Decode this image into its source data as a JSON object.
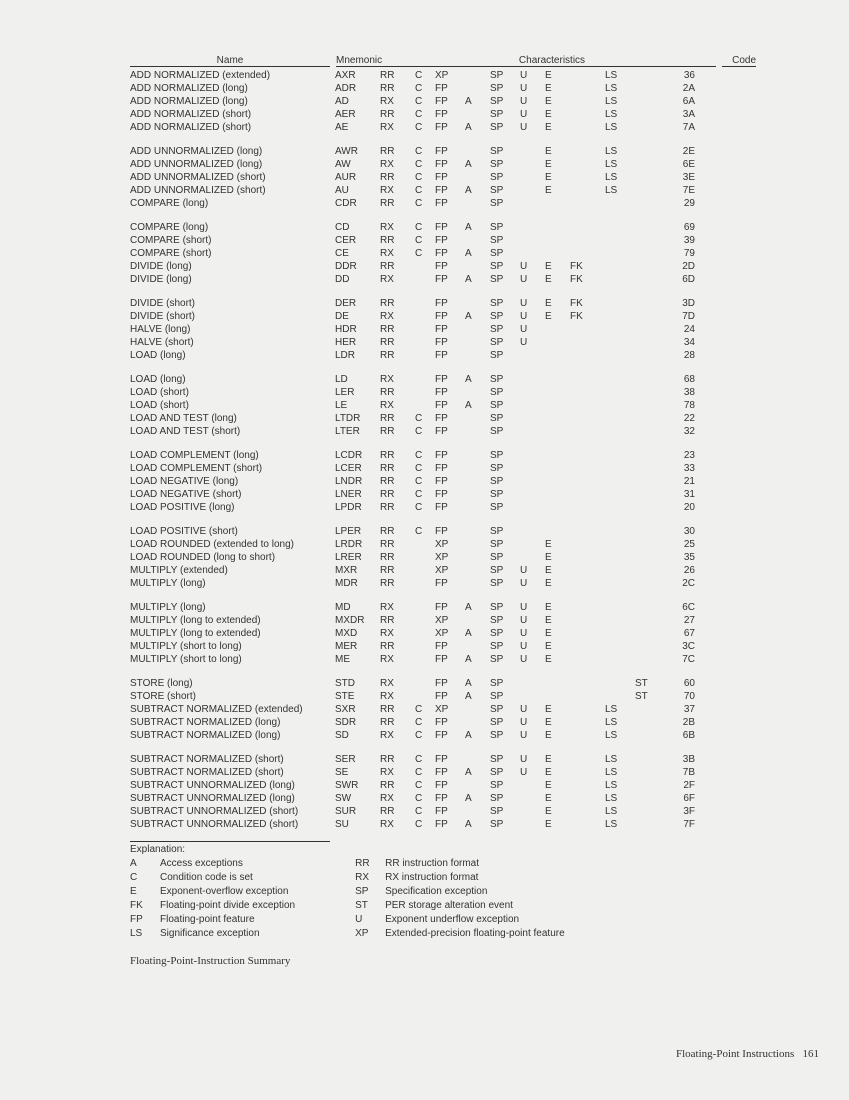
{
  "headers": {
    "name": "Name",
    "mnemonic": "Mnemonic",
    "characteristics": "Characteristics",
    "code": "Code"
  },
  "groups": [
    [
      {
        "name": "ADD NORMALIZED (extended)",
        "mnem": "AXR",
        "c": [
          "RR",
          "C",
          "XP",
          "",
          "SP",
          "U",
          "E",
          "",
          "LS",
          ""
        ],
        "code": "36"
      },
      {
        "name": "ADD NORMALIZED (long)",
        "mnem": "ADR",
        "c": [
          "RR",
          "C",
          "FP",
          "",
          "SP",
          "U",
          "E",
          "",
          "LS",
          ""
        ],
        "code": "2A"
      },
      {
        "name": "ADD NORMALIZED (long)",
        "mnem": "AD",
        "c": [
          "RX",
          "C",
          "FP",
          "A",
          "SP",
          "U",
          "E",
          "",
          "LS",
          ""
        ],
        "code": "6A"
      },
      {
        "name": "ADD NORMALIZED (short)",
        "mnem": "AER",
        "c": [
          "RR",
          "C",
          "FP",
          "",
          "SP",
          "U",
          "E",
          "",
          "LS",
          ""
        ],
        "code": "3A"
      },
      {
        "name": "ADD NORMALIZED (short)",
        "mnem": "AE",
        "c": [
          "RX",
          "C",
          "FP",
          "A",
          "SP",
          "U",
          "E",
          "",
          "LS",
          ""
        ],
        "code": "7A"
      }
    ],
    [
      {
        "name": "ADD UNNORMALIZED (long)",
        "mnem": "AWR",
        "c": [
          "RR",
          "C",
          "FP",
          "",
          "SP",
          "",
          "E",
          "",
          "LS",
          ""
        ],
        "code": "2E"
      },
      {
        "name": "ADD UNNORMALIZED (long)",
        "mnem": "AW",
        "c": [
          "RX",
          "C",
          "FP",
          "A",
          "SP",
          "",
          "E",
          "",
          "LS",
          ""
        ],
        "code": "6E"
      },
      {
        "name": "ADD UNNORMALIZED (short)",
        "mnem": "AUR",
        "c": [
          "RR",
          "C",
          "FP",
          "",
          "SP",
          "",
          "E",
          "",
          "LS",
          ""
        ],
        "code": "3E"
      },
      {
        "name": "ADD UNNORMALIZED (short)",
        "mnem": "AU",
        "c": [
          "RX",
          "C",
          "FP",
          "A",
          "SP",
          "",
          "E",
          "",
          "LS",
          ""
        ],
        "code": "7E"
      },
      {
        "name": "COMPARE (long)",
        "mnem": "CDR",
        "c": [
          "RR",
          "C",
          "FP",
          "",
          "SP",
          "",
          "",
          "",
          "",
          ""
        ],
        "code": "29"
      }
    ],
    [
      {
        "name": "COMPARE (long)",
        "mnem": "CD",
        "c": [
          "RX",
          "C",
          "FP",
          "A",
          "SP",
          "",
          "",
          "",
          "",
          ""
        ],
        "code": "69"
      },
      {
        "name": "COMPARE (short)",
        "mnem": "CER",
        "c": [
          "RR",
          "C",
          "FP",
          "",
          "SP",
          "",
          "",
          "",
          "",
          ""
        ],
        "code": "39"
      },
      {
        "name": "COMPARE (short)",
        "mnem": "CE",
        "c": [
          "RX",
          "C",
          "FP",
          "A",
          "SP",
          "",
          "",
          "",
          "",
          ""
        ],
        "code": "79"
      },
      {
        "name": "DIVIDE (long)",
        "mnem": "DDR",
        "c": [
          "RR",
          "",
          "FP",
          "",
          "SP",
          "U",
          "E",
          "FK",
          "",
          ""
        ],
        "code": "2D"
      },
      {
        "name": "DIVIDE (long)",
        "mnem": "DD",
        "c": [
          "RX",
          "",
          "FP",
          "A",
          "SP",
          "U",
          "E",
          "FK",
          "",
          ""
        ],
        "code": "6D"
      }
    ],
    [
      {
        "name": "DIVIDE (short)",
        "mnem": "DER",
        "c": [
          "RR",
          "",
          "FP",
          "",
          "SP",
          "U",
          "E",
          "FK",
          "",
          ""
        ],
        "code": "3D"
      },
      {
        "name": "DIVIDE (short)",
        "mnem": "DE",
        "c": [
          "RX",
          "",
          "FP",
          "A",
          "SP",
          "U",
          "E",
          "FK",
          "",
          ""
        ],
        "code": "7D"
      },
      {
        "name": "HALVE (long)",
        "mnem": "HDR",
        "c": [
          "RR",
          "",
          "FP",
          "",
          "SP",
          "U",
          "",
          "",
          "",
          ""
        ],
        "code": "24"
      },
      {
        "name": "HALVE (short)",
        "mnem": "HER",
        "c": [
          "RR",
          "",
          "FP",
          "",
          "SP",
          "U",
          "",
          "",
          "",
          ""
        ],
        "code": "34"
      },
      {
        "name": "LOAD (long)",
        "mnem": "LDR",
        "c": [
          "RR",
          "",
          "FP",
          "",
          "SP",
          "",
          "",
          "",
          "",
          ""
        ],
        "code": "28"
      }
    ],
    [
      {
        "name": "LOAD (long)",
        "mnem": "LD",
        "c": [
          "RX",
          "",
          "FP",
          "A",
          "SP",
          "",
          "",
          "",
          "",
          ""
        ],
        "code": "68"
      },
      {
        "name": "LOAD (short)",
        "mnem": "LER",
        "c": [
          "RR",
          "",
          "FP",
          "",
          "SP",
          "",
          "",
          "",
          "",
          ""
        ],
        "code": "38"
      },
      {
        "name": "LOAD (short)",
        "mnem": "LE",
        "c": [
          "RX",
          "",
          "FP",
          "A",
          "SP",
          "",
          "",
          "",
          "",
          ""
        ],
        "code": "78"
      },
      {
        "name": "LOAD AND TEST (long)",
        "mnem": "LTDR",
        "c": [
          "RR",
          "C",
          "FP",
          "",
          "SP",
          "",
          "",
          "",
          "",
          ""
        ],
        "code": "22"
      },
      {
        "name": "LOAD AND TEST (short)",
        "mnem": "LTER",
        "c": [
          "RR",
          "C",
          "FP",
          "",
          "SP",
          "",
          "",
          "",
          "",
          ""
        ],
        "code": "32"
      }
    ],
    [
      {
        "name": "LOAD COMPLEMENT (long)",
        "mnem": "LCDR",
        "c": [
          "RR",
          "C",
          "FP",
          "",
          "SP",
          "",
          "",
          "",
          "",
          ""
        ],
        "code": "23"
      },
      {
        "name": "LOAD COMPLEMENT (short)",
        "mnem": "LCER",
        "c": [
          "RR",
          "C",
          "FP",
          "",
          "SP",
          "",
          "",
          "",
          "",
          ""
        ],
        "code": "33"
      },
      {
        "name": "LOAD NEGATIVE (long)",
        "mnem": "LNDR",
        "c": [
          "RR",
          "C",
          "FP",
          "",
          "SP",
          "",
          "",
          "",
          "",
          ""
        ],
        "code": "21"
      },
      {
        "name": "LOAD NEGATIVE (short)",
        "mnem": "LNER",
        "c": [
          "RR",
          "C",
          "FP",
          "",
          "SP",
          "",
          "",
          "",
          "",
          ""
        ],
        "code": "31"
      },
      {
        "name": "LOAD POSITIVE (long)",
        "mnem": "LPDR",
        "c": [
          "RR",
          "C",
          "FP",
          "",
          "SP",
          "",
          "",
          "",
          "",
          ""
        ],
        "code": "20"
      }
    ],
    [
      {
        "name": "LOAD POSITIVE (short)",
        "mnem": "LPER",
        "c": [
          "RR",
          "C",
          "FP",
          "",
          "SP",
          "",
          "",
          "",
          "",
          ""
        ],
        "code": "30"
      },
      {
        "name": "LOAD ROUNDED (extended to long)",
        "mnem": "LRDR",
        "c": [
          "RR",
          "",
          "XP",
          "",
          "SP",
          "",
          "E",
          "",
          "",
          ""
        ],
        "code": "25"
      },
      {
        "name": "LOAD ROUNDED (long to short)",
        "mnem": "LRER",
        "c": [
          "RR",
          "",
          "XP",
          "",
          "SP",
          "",
          "E",
          "",
          "",
          ""
        ],
        "code": "35"
      },
      {
        "name": "MULTIPLY (extended)",
        "mnem": "MXR",
        "c": [
          "RR",
          "",
          "XP",
          "",
          "SP",
          "U",
          "E",
          "",
          "",
          ""
        ],
        "code": "26"
      },
      {
        "name": "MULTIPLY (long)",
        "mnem": "MDR",
        "c": [
          "RR",
          "",
          "FP",
          "",
          "SP",
          "U",
          "E",
          "",
          "",
          ""
        ],
        "code": "2C"
      }
    ],
    [
      {
        "name": "MULTIPLY (long)",
        "mnem": "MD",
        "c": [
          "RX",
          "",
          "FP",
          "A",
          "SP",
          "U",
          "E",
          "",
          "",
          ""
        ],
        "code": "6C"
      },
      {
        "name": "MULTIPLY (long to extended)",
        "mnem": "MXDR",
        "c": [
          "RR",
          "",
          "XP",
          "",
          "SP",
          "U",
          "E",
          "",
          "",
          ""
        ],
        "code": "27"
      },
      {
        "name": "MULTIPLY (long to extended)",
        "mnem": "MXD",
        "c": [
          "RX",
          "",
          "XP",
          "A",
          "SP",
          "U",
          "E",
          "",
          "",
          ""
        ],
        "code": "67"
      },
      {
        "name": "MULTIPLY (short to long)",
        "mnem": "MER",
        "c": [
          "RR",
          "",
          "FP",
          "",
          "SP",
          "U",
          "E",
          "",
          "",
          ""
        ],
        "code": "3C"
      },
      {
        "name": "MULTIPLY (short to long)",
        "mnem": "ME",
        "c": [
          "RX",
          "",
          "FP",
          "A",
          "SP",
          "U",
          "E",
          "",
          "",
          ""
        ],
        "code": "7C"
      }
    ],
    [
      {
        "name": "STORE (long)",
        "mnem": "STD",
        "c": [
          "RX",
          "",
          "FP",
          "A",
          "SP",
          "",
          "",
          "",
          "",
          "ST"
        ],
        "code": "60"
      },
      {
        "name": "STORE (short)",
        "mnem": "STE",
        "c": [
          "RX",
          "",
          "FP",
          "A",
          "SP",
          "",
          "",
          "",
          "",
          "ST"
        ],
        "code": "70"
      },
      {
        "name": "SUBTRACT NORMALIZED (extended)",
        "mnem": "SXR",
        "c": [
          "RR",
          "C",
          "XP",
          "",
          "SP",
          "U",
          "E",
          "",
          "LS",
          ""
        ],
        "code": "37"
      },
      {
        "name": "SUBTRACT NORMALIZED (long)",
        "mnem": "SDR",
        "c": [
          "RR",
          "C",
          "FP",
          "",
          "SP",
          "U",
          "E",
          "",
          "LS",
          ""
        ],
        "code": "2B"
      },
      {
        "name": "SUBTRACT NORMALIZED (long)",
        "mnem": "SD",
        "c": [
          "RX",
          "C",
          "FP",
          "A",
          "SP",
          "U",
          "E",
          "",
          "LS",
          ""
        ],
        "code": "6B"
      }
    ],
    [
      {
        "name": "SUBTRACT NORMALIZED (short)",
        "mnem": "SER",
        "c": [
          "RR",
          "C",
          "FP",
          "",
          "SP",
          "U",
          "E",
          "",
          "LS",
          ""
        ],
        "code": "3B"
      },
      {
        "name": "SUBTRACT NORMALIZED (short)",
        "mnem": "SE",
        "c": [
          "RX",
          "C",
          "FP",
          "A",
          "SP",
          "U",
          "E",
          "",
          "LS",
          ""
        ],
        "code": "7B"
      },
      {
        "name": "SUBTRACT UNNORMALIZED (long)",
        "mnem": "SWR",
        "c": [
          "RR",
          "C",
          "FP",
          "",
          "SP",
          "",
          "E",
          "",
          "LS",
          ""
        ],
        "code": "2F"
      },
      {
        "name": "SUBTRACT UNNORMALIZED (long)",
        "mnem": "SW",
        "c": [
          "RX",
          "C",
          "FP",
          "A",
          "SP",
          "",
          "E",
          "",
          "LS",
          ""
        ],
        "code": "6F"
      },
      {
        "name": "SUBTRACT UNNORMALIZED (short)",
        "mnem": "SUR",
        "c": [
          "RR",
          "C",
          "FP",
          "",
          "SP",
          "",
          "E",
          "",
          "LS",
          ""
        ],
        "code": "3F"
      },
      {
        "name": "SUBTRACT UNNORMALIZED (short)",
        "mnem": "SU",
        "c": [
          "RX",
          "C",
          "FP",
          "A",
          "SP",
          "",
          "E",
          "",
          "LS",
          ""
        ],
        "code": "7F"
      }
    ]
  ],
  "explanation": {
    "title": "Explanation:",
    "left": [
      {
        "k": "A",
        "v": "Access exceptions"
      },
      {
        "k": "C",
        "v": "Condition code is set"
      },
      {
        "k": "E",
        "v": "Exponent-overflow exception"
      },
      {
        "k": "FK",
        "v": "Floating-point divide exception"
      },
      {
        "k": "FP",
        "v": "Floating-point feature"
      },
      {
        "k": "LS",
        "v": "Significance exception"
      }
    ],
    "right": [
      {
        "k": "RR",
        "v": "RR instruction format"
      },
      {
        "k": "RX",
        "v": "RX instruction format"
      },
      {
        "k": "SP",
        "v": "Specification exception"
      },
      {
        "k": "ST",
        "v": "PER storage alteration event"
      },
      {
        "k": "U",
        "v": "Exponent underflow exception"
      },
      {
        "k": "XP",
        "v": "Extended-precision floating-point feature"
      }
    ]
  },
  "caption": "Floating-Point-Instruction Summary",
  "footer": {
    "section": "Floating-Point   Instructions",
    "page": "161"
  }
}
